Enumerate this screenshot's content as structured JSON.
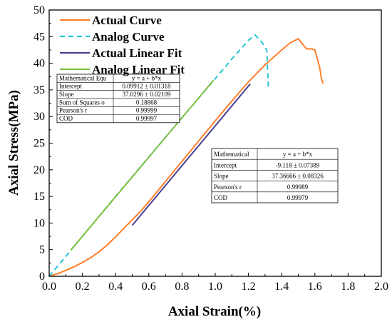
{
  "chart_data": {
    "type": "line",
    "xlabel": "Axial Strain(%)",
    "ylabel": "Axial Stress(MPa)",
    "xlim": [
      0,
      2.0
    ],
    "ylim": [
      0,
      50
    ],
    "x_ticks": [
      "0.0",
      "0.2",
      "0.4",
      "0.6",
      "0.8",
      "1.0",
      "1.2",
      "1.4",
      "1.6",
      "1.8",
      "2.0"
    ],
    "y_ticks": [
      "0",
      "5",
      "10",
      "15",
      "20",
      "25",
      "30",
      "35",
      "40",
      "45",
      "50"
    ],
    "grid": false,
    "legend_position": "top-left",
    "series": [
      {
        "name": "Actual Curve",
        "color": "#ff7f2a",
        "style": "solid",
        "points": [
          [
            0,
            0
          ],
          [
            0.05,
            0.5
          ],
          [
            0.1,
            1.1
          ],
          [
            0.15,
            1.8
          ],
          [
            0.2,
            2.6
          ],
          [
            0.25,
            3.5
          ],
          [
            0.3,
            4.6
          ],
          [
            0.35,
            5.9
          ],
          [
            0.4,
            7.4
          ],
          [
            0.45,
            9.0
          ],
          [
            0.5,
            10.6
          ],
          [
            0.55,
            12.2
          ],
          [
            0.6,
            14.0
          ],
          [
            0.7,
            17.8
          ],
          [
            0.8,
            21.6
          ],
          [
            0.9,
            25.4
          ],
          [
            1.0,
            29.2
          ],
          [
            1.1,
            32.9
          ],
          [
            1.2,
            36.5
          ],
          [
            1.3,
            39.7
          ],
          [
            1.4,
            42.5
          ],
          [
            1.45,
            43.8
          ],
          [
            1.5,
            44.6
          ],
          [
            1.52,
            43.8
          ],
          [
            1.55,
            42.7
          ],
          [
            1.58,
            42.7
          ],
          [
            1.6,
            42.5
          ],
          [
            1.62,
            40.3
          ],
          [
            1.63,
            39.0
          ],
          [
            1.64,
            37.0
          ],
          [
            1.65,
            36.2
          ]
        ]
      },
      {
        "name": "Analog Curve",
        "color": "#22c4d4",
        "style": "dashed",
        "points": [
          [
            0,
            0
          ],
          [
            0.2,
            7.5
          ],
          [
            0.4,
            15.0
          ],
          [
            0.6,
            22.4
          ],
          [
            0.8,
            29.8
          ],
          [
            1.0,
            37.1
          ],
          [
            1.1,
            40.8
          ],
          [
            1.2,
            44.3
          ],
          [
            1.24,
            45.3
          ],
          [
            1.28,
            44.0
          ],
          [
            1.31,
            42.5
          ],
          [
            1.32,
            35.5
          ],
          [
            1.33,
            35.0
          ]
        ]
      },
      {
        "name": "Actual Linear Fit",
        "color": "#4b3f8f",
        "style": "solid",
        "points": [
          [
            0.5,
            9.57
          ],
          [
            1.21,
            36.1
          ]
        ]
      },
      {
        "name": "Analog Linear Fit",
        "color": "#7fc241",
        "style": "solid",
        "points": [
          [
            0.13,
            4.92
          ],
          [
            0.99,
            36.82
          ]
        ]
      }
    ],
    "fit_tables": [
      {
        "position": "upper-left",
        "rows": [
          [
            "Mathematical Equ",
            "y = a + b*x"
          ],
          [
            "Intercept",
            "0.09912 ± 0.01318"
          ],
          [
            "Slope",
            "37.0296 ± 0.02109"
          ],
          [
            "Sum of Squares o",
            "0.18868"
          ],
          [
            "Pearson's r",
            "0.99999"
          ],
          [
            "COD",
            "0.99997"
          ]
        ]
      },
      {
        "position": "lower-right",
        "rows": [
          [
            "Mathematical",
            "y = a + b*x"
          ],
          [
            "Intercept",
            "-9.118 ± 0.07389"
          ],
          [
            "Slope",
            "37.36666 ± 0.08326"
          ],
          [
            "Pearson's r",
            "0.99989"
          ],
          [
            "COD",
            "0.99979"
          ]
        ]
      }
    ]
  }
}
